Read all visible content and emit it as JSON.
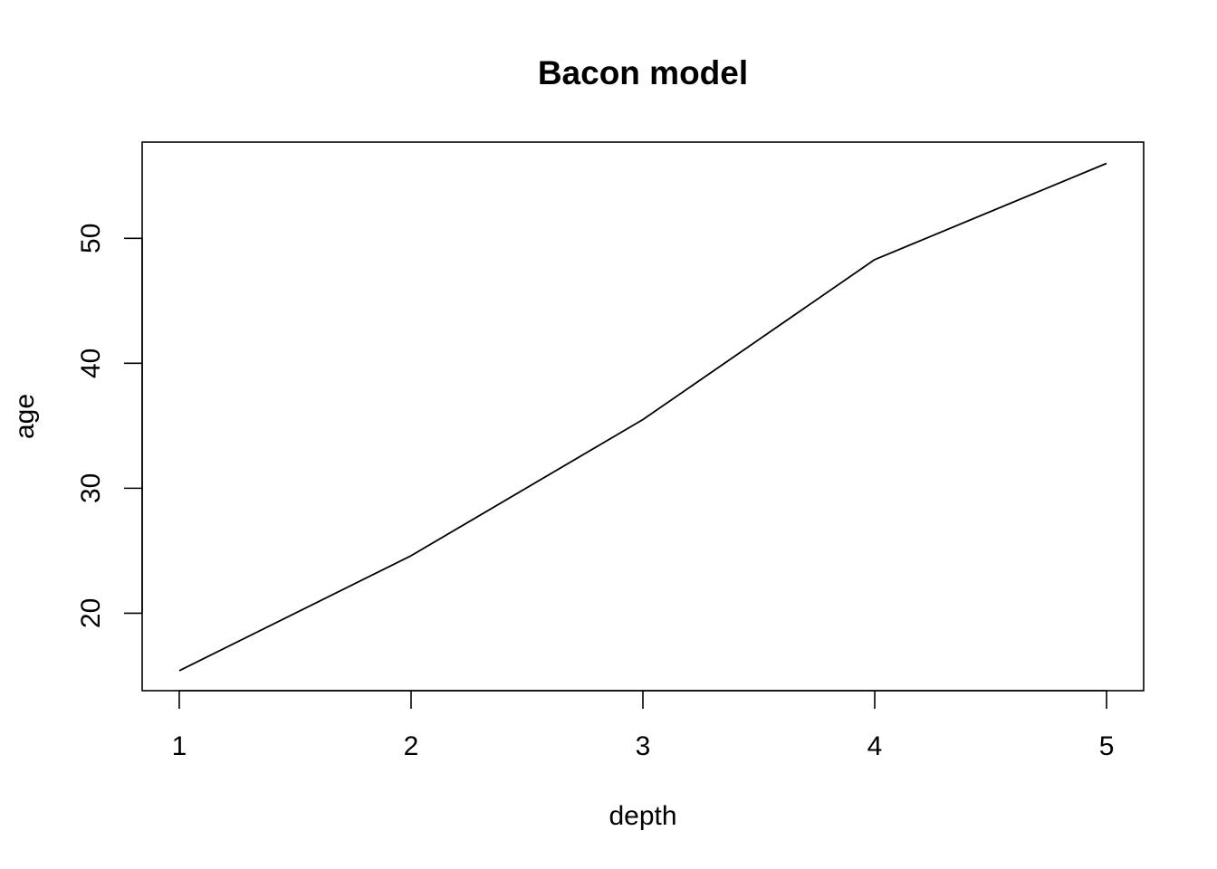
{
  "chart_data": {
    "type": "line",
    "title": "Bacon model",
    "xlabel": "depth",
    "ylabel": "age",
    "x": [
      1,
      2,
      3,
      4,
      5
    ],
    "series": [
      {
        "values": [
          15.4,
          24.6,
          35.5,
          48.3,
          56.0
        ],
        "color": "#000000"
      }
    ],
    "xlim": [
      0.84,
      5.16
    ],
    "ylim": [
      13.8,
      57.7
    ],
    "xticks": [
      1,
      2,
      3,
      4,
      5
    ],
    "yticks": [
      20,
      30,
      40,
      50
    ],
    "xtick_labels": [
      "1",
      "2",
      "3",
      "4",
      "5"
    ],
    "ytick_labels": [
      "20",
      "30",
      "40",
      "50"
    ],
    "grid": false,
    "legend": "none"
  }
}
